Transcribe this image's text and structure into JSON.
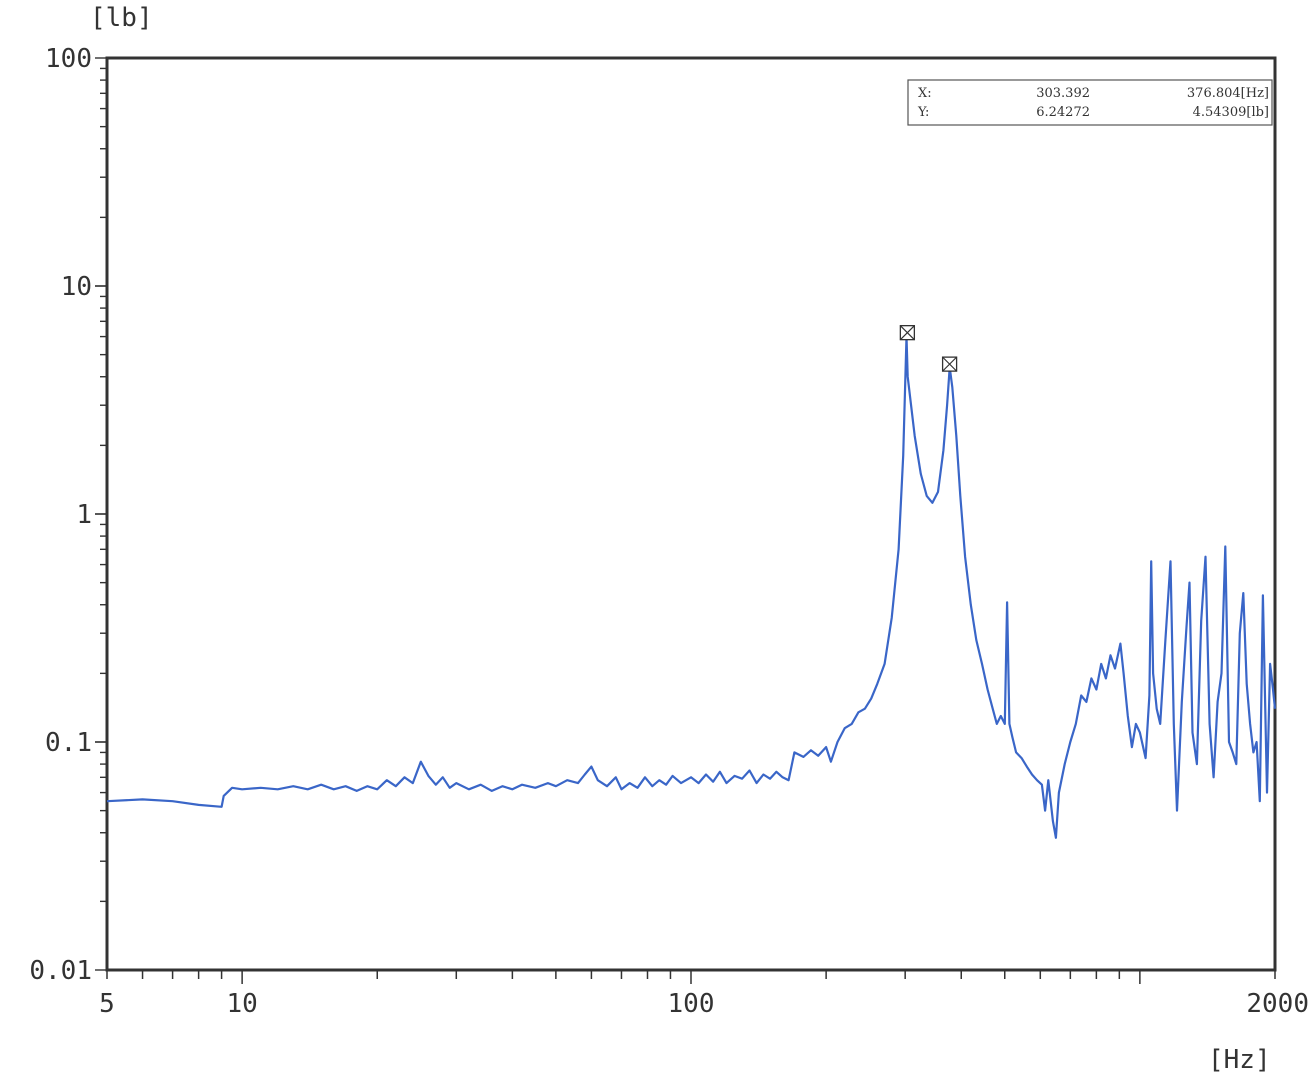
{
  "chart_data": {
    "type": "line",
    "title": "",
    "xlabel": "[Hz]",
    "ylabel": "[lb]",
    "xscale": "log",
    "yscale": "log",
    "xlim": [
      5,
      2000
    ],
    "ylim": [
      0.01,
      100
    ],
    "grid": false,
    "line_color": "#3a66c8",
    "x_ticks": [
      {
        "value": 5,
        "label": "5"
      },
      {
        "value": 10,
        "label": "10"
      },
      {
        "value": 100,
        "label": "100"
      },
      {
        "value": 2000,
        "label": "2000"
      }
    ],
    "y_ticks": [
      {
        "value": 0.01,
        "label": "0.01"
      },
      {
        "value": 0.1,
        "label": "0.1"
      },
      {
        "value": 1,
        "label": "1"
      },
      {
        "value": 10,
        "label": "10"
      },
      {
        "value": 100,
        "label": "100"
      }
    ],
    "cursor_readout": {
      "x_label": "X:",
      "y_label": "Y:",
      "x1": "303.392",
      "x2": "376.804[Hz]",
      "y1": "6.24272",
      "y2": "4.54309[lb]"
    },
    "markers": [
      {
        "x": 303.392,
        "y": 6.24272
      },
      {
        "x": 376.804,
        "y": 4.54309
      }
    ],
    "series": [
      {
        "values": [
          [
            5,
            0.055
          ],
          [
            6,
            0.056
          ],
          [
            7,
            0.055
          ],
          [
            8,
            0.053
          ],
          [
            9,
            0.052
          ],
          [
            9.1,
            0.058
          ],
          [
            9.5,
            0.063
          ],
          [
            10,
            0.062
          ],
          [
            11,
            0.063
          ],
          [
            12,
            0.062
          ],
          [
            13,
            0.064
          ],
          [
            14,
            0.062
          ],
          [
            15,
            0.065
          ],
          [
            16,
            0.062
          ],
          [
            17,
            0.064
          ],
          [
            18,
            0.061
          ],
          [
            19,
            0.064
          ],
          [
            20,
            0.062
          ],
          [
            21,
            0.068
          ],
          [
            22,
            0.064
          ],
          [
            23,
            0.07
          ],
          [
            24,
            0.066
          ],
          [
            25,
            0.082
          ],
          [
            26,
            0.071
          ],
          [
            27,
            0.065
          ],
          [
            28,
            0.07
          ],
          [
            29,
            0.063
          ],
          [
            30,
            0.066
          ],
          [
            32,
            0.062
          ],
          [
            34,
            0.065
          ],
          [
            36,
            0.061
          ],
          [
            38,
            0.064
          ],
          [
            40,
            0.062
          ],
          [
            42,
            0.065
          ],
          [
            45,
            0.063
          ],
          [
            48,
            0.066
          ],
          [
            50,
            0.064
          ],
          [
            53,
            0.068
          ],
          [
            56,
            0.066
          ],
          [
            58,
            0.072
          ],
          [
            60,
            0.078
          ],
          [
            62,
            0.068
          ],
          [
            65,
            0.064
          ],
          [
            68,
            0.07
          ],
          [
            70,
            0.062
          ],
          [
            73,
            0.066
          ],
          [
            76,
            0.063
          ],
          [
            79,
            0.07
          ],
          [
            82,
            0.064
          ],
          [
            85,
            0.068
          ],
          [
            88,
            0.065
          ],
          [
            91,
            0.071
          ],
          [
            95,
            0.066
          ],
          [
            100,
            0.07
          ],
          [
            104,
            0.066
          ],
          [
            108,
            0.072
          ],
          [
            112,
            0.067
          ],
          [
            116,
            0.074
          ],
          [
            120,
            0.066
          ],
          [
            125,
            0.071
          ],
          [
            130,
            0.069
          ],
          [
            135,
            0.075
          ],
          [
            140,
            0.066
          ],
          [
            145,
            0.072
          ],
          [
            150,
            0.069
          ],
          [
            155,
            0.074
          ],
          [
            160,
            0.07
          ],
          [
            165,
            0.068
          ],
          [
            170,
            0.09
          ],
          [
            178,
            0.086
          ],
          [
            185,
            0.092
          ],
          [
            192,
            0.087
          ],
          [
            200,
            0.095
          ],
          [
            205,
            0.082
          ],
          [
            212,
            0.1
          ],
          [
            220,
            0.115
          ],
          [
            228,
            0.12
          ],
          [
            236,
            0.135
          ],
          [
            244,
            0.14
          ],
          [
            252,
            0.155
          ],
          [
            260,
            0.18
          ],
          [
            270,
            0.22
          ],
          [
            280,
            0.35
          ],
          [
            290,
            0.7
          ],
          [
            297,
            1.8
          ],
          [
            302,
            6.0
          ],
          [
            304,
            4.0
          ],
          [
            308,
            3.2
          ],
          [
            315,
            2.2
          ],
          [
            325,
            1.5
          ],
          [
            335,
            1.2
          ],
          [
            345,
            1.12
          ],
          [
            355,
            1.25
          ],
          [
            365,
            1.9
          ],
          [
            372,
            3.0
          ],
          [
            377,
            4.4
          ],
          [
            382,
            3.6
          ],
          [
            390,
            2.2
          ],
          [
            398,
            1.2
          ],
          [
            408,
            0.65
          ],
          [
            420,
            0.4
          ],
          [
            432,
            0.28
          ],
          [
            445,
            0.22
          ],
          [
            458,
            0.17
          ],
          [
            470,
            0.14
          ],
          [
            480,
            0.12
          ],
          [
            490,
            0.13
          ],
          [
            500,
            0.12
          ],
          [
            506,
            0.41
          ],
          [
            512,
            0.12
          ],
          [
            520,
            0.105
          ],
          [
            530,
            0.09
          ],
          [
            545,
            0.085
          ],
          [
            560,
            0.078
          ],
          [
            575,
            0.072
          ],
          [
            590,
            0.068
          ],
          [
            605,
            0.065
          ],
          [
            615,
            0.05
          ],
          [
            625,
            0.068
          ],
          [
            640,
            0.045
          ],
          [
            650,
            0.038
          ],
          [
            660,
            0.06
          ],
          [
            680,
            0.08
          ],
          [
            700,
            0.1
          ],
          [
            720,
            0.12
          ],
          [
            740,
            0.16
          ],
          [
            760,
            0.15
          ],
          [
            780,
            0.19
          ],
          [
            800,
            0.17
          ],
          [
            820,
            0.22
          ],
          [
            840,
            0.19
          ],
          [
            860,
            0.24
          ],
          [
            880,
            0.21
          ],
          [
            905,
            0.27
          ],
          [
            920,
            0.2
          ],
          [
            940,
            0.13
          ],
          [
            960,
            0.095
          ],
          [
            980,
            0.12
          ],
          [
            1000,
            0.11
          ],
          [
            1030,
            0.085
          ],
          [
            1050,
            0.16
          ],
          [
            1060,
            0.62
          ],
          [
            1070,
            0.2
          ],
          [
            1090,
            0.14
          ],
          [
            1110,
            0.12
          ],
          [
            1140,
            0.28
          ],
          [
            1170,
            0.62
          ],
          [
            1190,
            0.12
          ],
          [
            1210,
            0.05
          ],
          [
            1240,
            0.15
          ],
          [
            1270,
            0.32
          ],
          [
            1290,
            0.5
          ],
          [
            1310,
            0.11
          ],
          [
            1340,
            0.08
          ],
          [
            1370,
            0.34
          ],
          [
            1400,
            0.65
          ],
          [
            1430,
            0.12
          ],
          [
            1460,
            0.07
          ],
          [
            1490,
            0.15
          ],
          [
            1520,
            0.2
          ],
          [
            1550,
            0.72
          ],
          [
            1580,
            0.1
          ],
          [
            1610,
            0.09
          ],
          [
            1640,
            0.08
          ],
          [
            1670,
            0.3
          ],
          [
            1700,
            0.45
          ],
          [
            1730,
            0.18
          ],
          [
            1760,
            0.12
          ],
          [
            1790,
            0.09
          ],
          [
            1820,
            0.1
          ],
          [
            1850,
            0.055
          ],
          [
            1880,
            0.44
          ],
          [
            1920,
            0.06
          ],
          [
            1950,
            0.22
          ],
          [
            1980,
            0.17
          ],
          [
            2000,
            0.14
          ]
        ]
      }
    ]
  }
}
